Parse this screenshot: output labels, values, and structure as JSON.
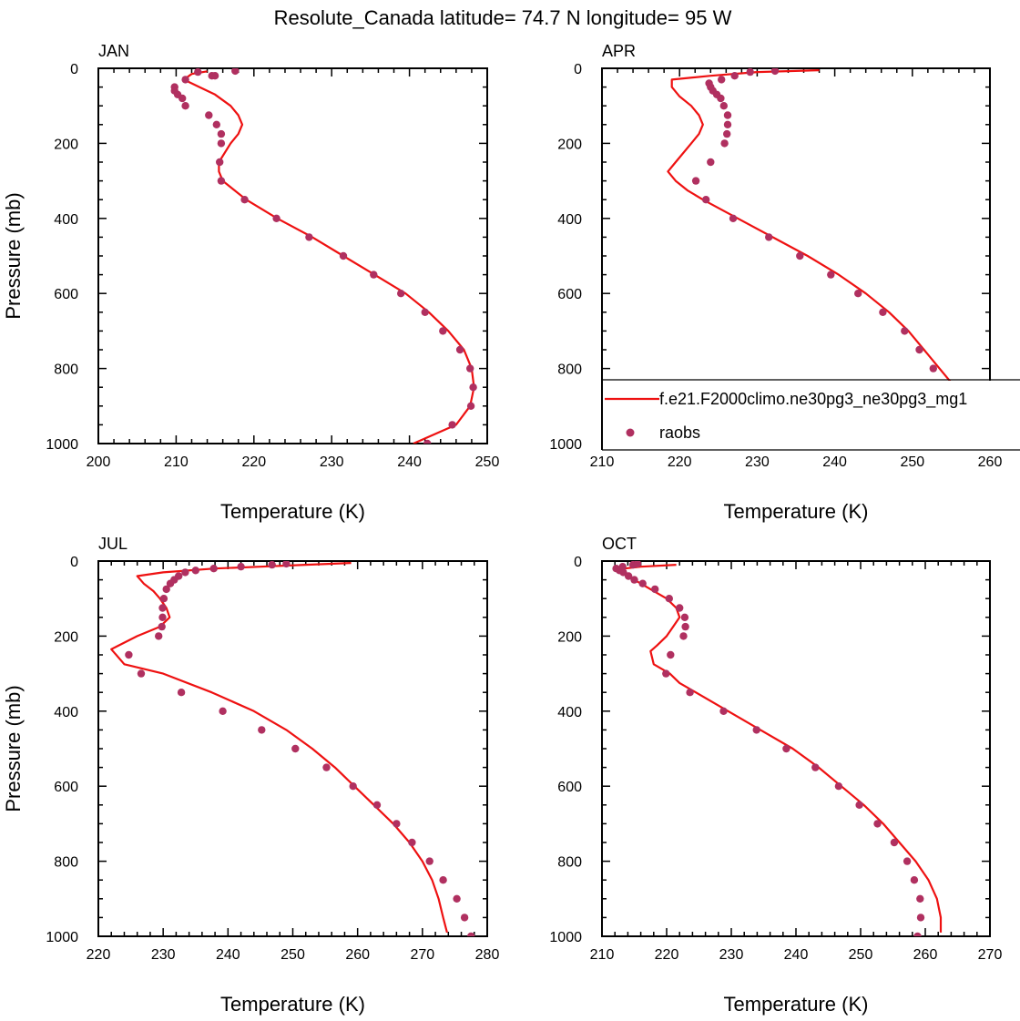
{
  "figure": {
    "title": "Resolute_Canada  latitude= 74.7 N longitude= 95 W",
    "model_color": "#ee1111",
    "obs_color": "#b03060"
  },
  "legend": {
    "model_label": "f.e21.F2000climo.ne30pg3_ne30pg3_mg1",
    "obs_label": "raobs"
  },
  "chart_data": [
    {
      "type": "line",
      "panel": "JAN",
      "xlabel": "Temperature (K)",
      "ylabel": "Pressure (mb)",
      "xlim": [
        200,
        250
      ],
      "ylim": [
        1000,
        0
      ],
      "xticks": [
        200,
        210,
        220,
        230,
        240,
        250
      ],
      "yticks": [
        0,
        200,
        400,
        600,
        800,
        1000
      ],
      "series": [
        {
          "kind": "line",
          "p": [
            8,
            15,
            30,
            50,
            70,
            100,
            125,
            150,
            175,
            200,
            250,
            275,
            300,
            325,
            350,
            400,
            450,
            500,
            550,
            600,
            650,
            700,
            750,
            800,
            850,
            900,
            950,
            1000
          ],
          "t": [
            214,
            212,
            211,
            213,
            215,
            217,
            218,
            218.5,
            218,
            217,
            215.5,
            215.5,
            216,
            217.5,
            219,
            223,
            227.5,
            231.5,
            235.5,
            239.5,
            242.5,
            245,
            247,
            248,
            248.3,
            247.8,
            246,
            240.5
          ]
        },
        {
          "kind": "scatter",
          "p": [
            7,
            10,
            20,
            20,
            30,
            50,
            60,
            70,
            80,
            100,
            125,
            150,
            175,
            200,
            250,
            300,
            350,
            400,
            450,
            500,
            550,
            600,
            650,
            700,
            750,
            800,
            850,
            900,
            950,
            1000
          ],
          "t": [
            217.6,
            212.8,
            214.6,
            215,
            211.2,
            209.8,
            209.8,
            210.2,
            210.8,
            211.2,
            214.2,
            215.2,
            215.8,
            215.8,
            215.6,
            215.8,
            218.8,
            222.9,
            227.1,
            231.5,
            235.4,
            238.9,
            242,
            244.3,
            246.5,
            247.8,
            248.2,
            247.9,
            245.5,
            242.3
          ]
        }
      ]
    },
    {
      "type": "line",
      "panel": "APR",
      "xlabel": "Temperature (K)",
      "ylabel": "",
      "xlim": [
        210,
        260
      ],
      "ylim": [
        1000,
        0
      ],
      "xticks": [
        210,
        220,
        230,
        240,
        250,
        260
      ],
      "yticks": [
        0,
        200,
        400,
        600,
        800,
        1000
      ],
      "series": [
        {
          "kind": "line",
          "p": [
            5,
            10,
            20,
            30,
            50,
            75,
            100,
            125,
            150,
            175,
            200,
            250,
            275,
            300,
            325,
            350,
            400,
            450,
            500,
            550,
            600,
            650,
            700,
            750,
            800,
            850,
            900,
            950,
            1000
          ],
          "t": [
            238,
            230,
            224,
            219,
            219,
            220,
            221.5,
            222.5,
            223,
            222.5,
            221.5,
            219.5,
            218.5,
            219.5,
            221,
            223,
            227.5,
            232,
            236.5,
            240.5,
            244,
            247,
            249.5,
            251.5,
            253.5,
            255.5,
            256,
            254,
            252.5
          ]
        },
        {
          "kind": "scatter",
          "p": [
            7,
            10,
            20,
            30,
            40,
            50,
            60,
            70,
            80,
            100,
            125,
            150,
            175,
            200,
            250,
            300,
            350,
            400,
            450,
            500,
            550,
            600,
            650,
            700,
            750,
            800,
            850,
            900,
            950,
            1000
          ],
          "t": [
            232.3,
            229.1,
            227.1,
            225.4,
            223.8,
            224,
            224.3,
            224.8,
            225.3,
            225.7,
            226.2,
            226.2,
            226.1,
            225.8,
            224,
            222.1,
            223.4,
            226.9,
            231.5,
            235.5,
            239.5,
            243,
            246.2,
            249,
            250.9,
            252.7,
            254,
            254.2,
            253.5,
            251
          ]
        }
      ]
    },
    {
      "type": "line",
      "panel": "JUL",
      "xlabel": "Temperature (K)",
      "ylabel": "Pressure (mb)",
      "xlim": [
        220,
        280
      ],
      "ylim": [
        1000,
        0
      ],
      "xticks": [
        220,
        230,
        240,
        250,
        260,
        270,
        280
      ],
      "yticks": [
        0,
        200,
        400,
        600,
        800,
        1000
      ],
      "series": [
        {
          "kind": "line",
          "p": [
            5,
            10,
            15,
            20,
            30,
            40,
            60,
            80,
            100,
            125,
            150,
            175,
            200,
            235,
            275,
            300,
            350,
            400,
            450,
            500,
            550,
            600,
            650,
            700,
            750,
            800,
            850,
            900,
            950,
            990
          ],
          "t": [
            259,
            252,
            245,
            238,
            230,
            226,
            227,
            228.5,
            229.5,
            230.5,
            231,
            229.5,
            226,
            222,
            224,
            230,
            237.5,
            244,
            249,
            253,
            256.5,
            259.5,
            262.5,
            265.5,
            268,
            270,
            271.5,
            272.5,
            273.2,
            273.8
          ]
        },
        {
          "kind": "scatter",
          "p": [
            7,
            10,
            15,
            20,
            25,
            30,
            40,
            50,
            60,
            75,
            100,
            125,
            150,
            175,
            200,
            250,
            300,
            350,
            400,
            450,
            500,
            550,
            600,
            650,
            700,
            750,
            800,
            850,
            900,
            950,
            1000
          ],
          "t": [
            249,
            246.8,
            242,
            237.8,
            235,
            233.4,
            232.4,
            231.7,
            231.1,
            230.5,
            230.1,
            229.9,
            229.9,
            229.8,
            229.3,
            224.7,
            226.6,
            232.8,
            239.2,
            245.2,
            250.4,
            255.2,
            259.3,
            263,
            266,
            268.4,
            271.1,
            273.2,
            275.3,
            276.5,
            277.5
          ]
        }
      ]
    },
    {
      "type": "line",
      "panel": "OCT",
      "xlabel": "Temperature (K)",
      "ylabel": "",
      "xlim": [
        210,
        270
      ],
      "ylim": [
        1000,
        0
      ],
      "xticks": [
        210,
        220,
        230,
        240,
        250,
        260,
        270
      ],
      "yticks": [
        0,
        200,
        400,
        600,
        800,
        1000
      ],
      "series": [
        {
          "kind": "line",
          "p": [
            10,
            15,
            20,
            30,
            50,
            75,
            100,
            125,
            150,
            175,
            200,
            225,
            240,
            275,
            300,
            325,
            350,
            400,
            450,
            500,
            550,
            600,
            650,
            700,
            750,
            800,
            850,
            900,
            950,
            990
          ],
          "t": [
            221.5,
            216,
            213.5,
            213.5,
            215,
            217.5,
            220,
            221.5,
            222,
            221,
            220,
            218.5,
            217.5,
            218,
            220.5,
            222,
            224.5,
            229.5,
            234.5,
            239.5,
            243.5,
            247,
            250.5,
            253.5,
            256,
            258.5,
            260.5,
            261.8,
            262.4,
            262.4
          ]
        },
        {
          "kind": "scatter",
          "p": [
            7,
            10,
            15,
            20,
            25,
            30,
            40,
            50,
            60,
            75,
            100,
            125,
            150,
            175,
            200,
            250,
            300,
            350,
            400,
            450,
            500,
            550,
            600,
            650,
            700,
            750,
            800,
            850,
            900,
            950,
            1000
          ],
          "t": [
            215.5,
            214.8,
            213.2,
            212.2,
            212.7,
            213.3,
            214.1,
            215,
            216.3,
            218.2,
            220.4,
            222,
            222.8,
            222.9,
            222.6,
            220.6,
            219.9,
            223.6,
            228.8,
            233.9,
            238.5,
            243,
            246.6,
            249.8,
            252.6,
            255.2,
            257.2,
            258.3,
            259.2,
            259.3,
            258.8
          ]
        }
      ]
    }
  ]
}
